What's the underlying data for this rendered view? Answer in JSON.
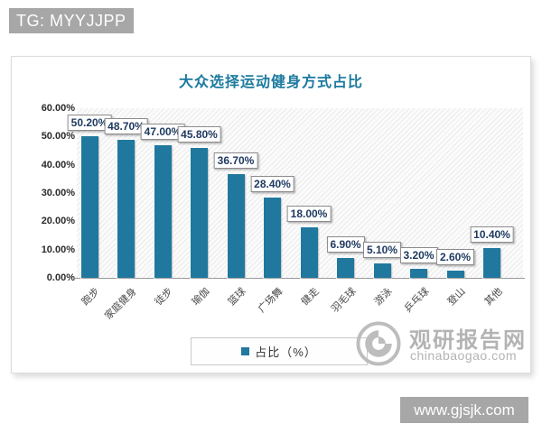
{
  "page": {
    "top_left_badge": "TG: MYYJJPP",
    "bottom_right_badge": "www.gjsjk.com"
  },
  "watermark": {
    "name": "观研报告网",
    "domain": "chinabaogao.com"
  },
  "chart_data": {
    "type": "bar",
    "title": "大众选择运动健身方式占比",
    "categories": [
      "跑步",
      "家庭健身",
      "徒步",
      "瑜伽",
      "篮球",
      "广场舞",
      "健走",
      "羽毛球",
      "游泳",
      "乒乓球",
      "登山",
      "其他"
    ],
    "values": [
      50.2,
      48.7,
      47.0,
      45.8,
      36.7,
      28.4,
      18.0,
      6.9,
      5.1,
      3.2,
      2.6,
      10.4
    ],
    "data_labels": [
      "50.20%",
      "48.70%",
      "47.00%",
      "45.80%",
      "36.70%",
      "28.40%",
      "18.00%",
      "6.90%",
      "5.10%",
      "3.20%",
      "2.60%",
      "10.40%"
    ],
    "legend": [
      "占比（%）"
    ],
    "legend_position": "bottom",
    "ylim": [
      0,
      60
    ],
    "yticks": [
      "0.00%",
      "10.00%",
      "20.00%",
      "30.00%",
      "40.00%",
      "50.00%",
      "60.00%"
    ],
    "grid": false,
    "bar_color": "#21789e",
    "title_color": "#1b7a9e"
  }
}
